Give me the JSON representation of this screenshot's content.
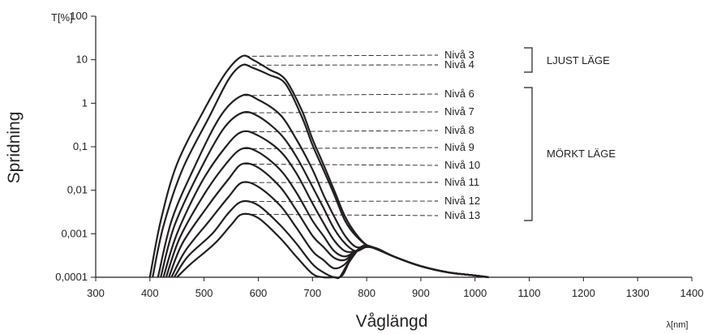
{
  "chart_data": {
    "type": "line",
    "yscale": "log",
    "xlim": [
      300,
      1400
    ],
    "ylim": [
      0.0001,
      100
    ],
    "xlabel": "Våglängd",
    "xunit": "λ[nm]",
    "ylabel": "Spridning",
    "yunit": "T[%]",
    "xticks": [
      "300",
      "400",
      "500",
      "600",
      "700",
      "800",
      "900",
      "1000",
      "1100",
      "1200",
      "1300",
      "1400"
    ],
    "yticks": [
      "0,0001",
      "0,001",
      "0,01",
      "0,1",
      "1",
      "10",
      "100"
    ],
    "ytick_values": [
      0.0001,
      0.001,
      0.01,
      0.1,
      1,
      10,
      100
    ],
    "series": [
      {
        "name": "Nivå  3",
        "peak": 12,
        "x": [
          400,
          420,
          450,
          500,
          540,
          570,
          590,
          620,
          650,
          680,
          700,
          720,
          740,
          760,
          780,
          800,
          820,
          850,
          900,
          950,
          1000,
          1025
        ],
        "y": [
          0.0001,
          0.002,
          0.04,
          0.7,
          5,
          12,
          10,
          6,
          3.5,
          0.7,
          0.15,
          0.04,
          0.01,
          0.0025,
          0.001,
          0.00055,
          0.00045,
          0.0003,
          0.00018,
          0.00013,
          0.00011,
          0.0001
        ]
      },
      {
        "name": "Nivå  4",
        "peak": 7.5,
        "x": [
          405,
          425,
          460,
          510,
          545,
          570,
          590,
          620,
          650,
          680,
          700,
          720,
          740,
          760,
          780,
          800,
          820,
          850,
          900,
          950,
          1000,
          1025
        ],
        "y": [
          0.0001,
          0.0015,
          0.03,
          0.5,
          3.5,
          7.5,
          6.5,
          4.5,
          2.8,
          0.5,
          0.11,
          0.03,
          0.008,
          0.002,
          0.0009,
          0.00055,
          0.00045,
          0.0003,
          0.00018,
          0.00013,
          0.00011,
          0.0001
        ]
      },
      {
        "name": "Nivå  6",
        "peak": 1.5,
        "x": [
          415,
          440,
          480,
          530,
          570,
          600,
          640,
          670,
          700,
          720,
          740,
          760,
          780,
          800,
          820,
          850,
          900,
          950,
          1000,
          1025
        ],
        "y": [
          0.0001,
          0.002,
          0.03,
          0.5,
          1.5,
          1.2,
          0.55,
          0.15,
          0.03,
          0.008,
          0.0025,
          0.0009,
          0.0005,
          0.0005,
          0.00045,
          0.0003,
          0.00018,
          0.00013,
          0.00011,
          0.0001
        ]
      },
      {
        "name": "Nivå  7",
        "peak": 0.6,
        "x": [
          420,
          445,
          490,
          535,
          570,
          600,
          640,
          670,
          700,
          720,
          740,
          760,
          780,
          800,
          820,
          850,
          900,
          950,
          1000,
          1025
        ],
        "y": [
          0.0001,
          0.0015,
          0.025,
          0.25,
          0.6,
          0.5,
          0.2,
          0.06,
          0.012,
          0.004,
          0.0013,
          0.0006,
          0.0004,
          0.0005,
          0.00045,
          0.0003,
          0.00018,
          0.00013,
          0.00011,
          0.0001
        ]
      },
      {
        "name": "Nivå  8",
        "peak": 0.22,
        "x": [
          425,
          450,
          495,
          540,
          570,
          600,
          640,
          670,
          700,
          720,
          740,
          760,
          780,
          800,
          820,
          850,
          900,
          950,
          1000,
          1025
        ],
        "y": [
          0.0001,
          0.001,
          0.015,
          0.1,
          0.22,
          0.18,
          0.08,
          0.025,
          0.005,
          0.0018,
          0.0007,
          0.0004,
          0.0004,
          0.0005,
          0.00045,
          0.0003,
          0.00018,
          0.00013,
          0.00011,
          0.0001
        ]
      },
      {
        "name": "Nivå  9",
        "peak": 0.09,
        "x": [
          430,
          455,
          500,
          540,
          570,
          600,
          640,
          670,
          700,
          720,
          740,
          760,
          780,
          800,
          820,
          850,
          900,
          950,
          1000,
          1025
        ],
        "y": [
          0.0001,
          0.0008,
          0.008,
          0.04,
          0.09,
          0.075,
          0.03,
          0.009,
          0.002,
          0.0009,
          0.0004,
          0.0003,
          0.0004,
          0.0005,
          0.00045,
          0.0003,
          0.00018,
          0.00013,
          0.00011,
          0.0001
        ]
      },
      {
        "name": "Nivå  10",
        "peak": 0.04,
        "x": [
          435,
          460,
          505,
          545,
          570,
          600,
          640,
          670,
          700,
          720,
          740,
          760,
          780,
          800,
          820,
          850,
          900,
          950,
          1000,
          1025
        ],
        "y": [
          0.0001,
          0.0006,
          0.004,
          0.018,
          0.04,
          0.033,
          0.012,
          0.0035,
          0.0009,
          0.0005,
          0.00028,
          0.00025,
          0.0004,
          0.0005,
          0.00045,
          0.0003,
          0.00018,
          0.00013,
          0.00011,
          0.0001
        ]
      },
      {
        "name": "Nivå  11",
        "peak": 0.015,
        "x": [
          440,
          465,
          510,
          545,
          570,
          600,
          640,
          670,
          700,
          720,
          740,
          760,
          780,
          800,
          820,
          850,
          900,
          950,
          1000,
          1025
        ],
        "y": [
          0.0001,
          0.0004,
          0.002,
          0.007,
          0.015,
          0.012,
          0.0045,
          0.0014,
          0.0004,
          0.00025,
          0.00016,
          0.0002,
          0.0004,
          0.0005,
          0.00045,
          0.0003,
          0.00018,
          0.00013,
          0.00011,
          0.0001
        ]
      },
      {
        "name": "Nivå  12",
        "peak": 0.0055,
        "x": [
          445,
          470,
          515,
          545,
          570,
          600,
          640,
          670,
          700,
          720,
          740,
          755,
          770,
          790,
          810,
          850,
          900,
          950,
          1000,
          1025
        ],
        "y": [
          0.0001,
          0.0003,
          0.001,
          0.003,
          0.0055,
          0.0045,
          0.0016,
          0.0006,
          0.0002,
          0.00013,
          0.0001,
          0.00011,
          0.00025,
          0.0005,
          0.00048,
          0.0003,
          0.00018,
          0.00013,
          0.00011,
          0.0001
        ]
      },
      {
        "name": "Nivå  13",
        "peak": 0.0028,
        "x": [
          450,
          475,
          520,
          550,
          570,
          600,
          640,
          670,
          700,
          720,
          740,
          750,
          765,
          790,
          810,
          850,
          900,
          950,
          1000,
          1025
        ],
        "y": [
          0.0001,
          0.0002,
          0.0006,
          0.0016,
          0.0028,
          0.0023,
          0.0008,
          0.0003,
          0.00012,
          0.0001,
          0.0001,
          0.0001,
          0.0002,
          0.0005,
          0.0005,
          0.0003,
          0.00018,
          0.00013,
          0.00011,
          0.0001
        ]
      }
    ],
    "groups": [
      {
        "name": "LJUST LÄGE",
        "levels": [
          "Nivå  3",
          "Nivå  4"
        ]
      },
      {
        "name": "MÖRKT LÄGE",
        "levels": [
          "Nivå  6",
          "Nivå  7",
          "Nivå  8",
          "Nivå  9",
          "Nivå  10",
          "Nivå  11",
          "Nivå  12",
          "Nivå  13"
        ]
      }
    ],
    "label_y": [
      68,
      80,
      116,
      138,
      161,
      182,
      204,
      225,
      248,
      266
    ],
    "grid": false,
    "colors": {
      "line": "#231f20",
      "background": "#ffffff"
    }
  }
}
